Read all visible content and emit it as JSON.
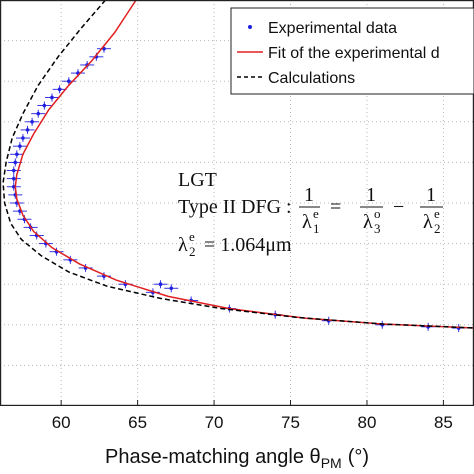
{
  "chart_data": {
    "type": "scatter",
    "xlabel": "Phase-matching angle θ",
    "xlabel_subscript": "PM",
    "xlabel_unit": "(°)",
    "xlim": [
      56,
      87
    ],
    "xticks": [
      60,
      65,
      70,
      75,
      80,
      85
    ],
    "ylim": [
      0,
      100
    ],
    "grid": true,
    "legend": {
      "placement": "top-right",
      "entries": [
        {
          "label": "Experimental data",
          "marker": "dot",
          "color": "#1f1fe0"
        },
        {
          "label": "Fit of the experimental d",
          "marker": "line",
          "color": "#e02020"
        },
        {
          "label": "Calculations",
          "marker": "dashed-line",
          "color": "#000000"
        }
      ]
    },
    "annotations": {
      "crystal": "LGT",
      "interaction": "Type II DFG :",
      "eq_one": "1",
      "eq_l1": "λ",
      "eq_l1_sup": "e",
      "eq_l1_sub": "1",
      "eq_equals": "=",
      "eq_l3": "λ",
      "eq_l3_sup": "o",
      "eq_l3_sub": "3",
      "eq_minus": "−",
      "eq_l2": "λ",
      "eq_l2_sup": "e",
      "eq_l2_sub": "2",
      "pump_lhs": "λ",
      "pump_sup": "e",
      "pump_sub": "2",
      "pump_value": "= 1.064μm"
    },
    "series": [
      {
        "name": "Experimental data",
        "style": "points-with-error-bars",
        "color": "#1f1fe0",
        "points": [
          [
            62.8,
            88
          ],
          [
            62.3,
            86
          ],
          [
            61.7,
            84
          ],
          [
            61.1,
            82
          ],
          [
            60.5,
            80
          ],
          [
            59.9,
            78
          ],
          [
            59.4,
            76
          ],
          [
            58.9,
            74
          ],
          [
            58.5,
            72
          ],
          [
            58.1,
            70
          ],
          [
            57.8,
            68
          ],
          [
            57.5,
            66
          ],
          [
            57.3,
            64
          ],
          [
            57.1,
            62
          ],
          [
            57.0,
            60
          ],
          [
            56.9,
            58
          ],
          [
            56.9,
            56
          ],
          [
            56.9,
            54
          ],
          [
            57.0,
            52
          ],
          [
            57.1,
            50
          ],
          [
            57.3,
            48
          ],
          [
            57.6,
            46
          ],
          [
            58.0,
            44
          ],
          [
            58.4,
            42
          ],
          [
            59.0,
            40
          ],
          [
            59.7,
            38
          ],
          [
            60.6,
            36
          ],
          [
            61.6,
            34
          ],
          [
            62.8,
            32
          ],
          [
            64.2,
            30
          ],
          [
            66.5,
            30
          ],
          [
            67.2,
            29
          ],
          [
            66.0,
            28
          ],
          [
            68.5,
            26
          ],
          [
            71.0,
            24
          ],
          [
            74.0,
            22.5
          ],
          [
            77.5,
            21
          ],
          [
            81.0,
            20
          ],
          [
            84.0,
            19.5
          ],
          [
            86.0,
            19.2
          ]
        ]
      },
      {
        "name": "Fit of the experimental d",
        "style": "line",
        "color": "#e02020",
        "points": [
          [
            64.9,
            100
          ],
          [
            63.5,
            92
          ],
          [
            62.0,
            85
          ],
          [
            60.5,
            79
          ],
          [
            59.2,
            73
          ],
          [
            58.2,
            67
          ],
          [
            57.5,
            62
          ],
          [
            57.1,
            57
          ],
          [
            57.0,
            54
          ],
          [
            57.1,
            51
          ],
          [
            57.5,
            47
          ],
          [
            58.2,
            43
          ],
          [
            59.4,
            39
          ],
          [
            61.2,
            35
          ],
          [
            63.6,
            31
          ],
          [
            67.0,
            27
          ],
          [
            71.0,
            24
          ],
          [
            76.0,
            21.6
          ],
          [
            81.0,
            20.2
          ],
          [
            87.0,
            19.2
          ]
        ]
      },
      {
        "name": "Calculations",
        "style": "dashed-line",
        "color": "#000000",
        "points": [
          [
            62.9,
            100
          ],
          [
            61.3,
            93
          ],
          [
            59.8,
            86
          ],
          [
            58.5,
            79
          ],
          [
            57.5,
            72
          ],
          [
            56.8,
            66
          ],
          [
            56.4,
            60
          ],
          [
            56.2,
            55
          ],
          [
            56.3,
            50
          ],
          [
            56.7,
            45
          ],
          [
            57.4,
            41
          ],
          [
            58.7,
            37
          ],
          [
            60.5,
            33
          ],
          [
            63.0,
            29.5
          ],
          [
            66.5,
            26.5
          ],
          [
            70.5,
            24
          ],
          [
            75.5,
            21.8
          ],
          [
            81.0,
            20.2
          ],
          [
            87.0,
            19.2
          ]
        ]
      }
    ]
  }
}
